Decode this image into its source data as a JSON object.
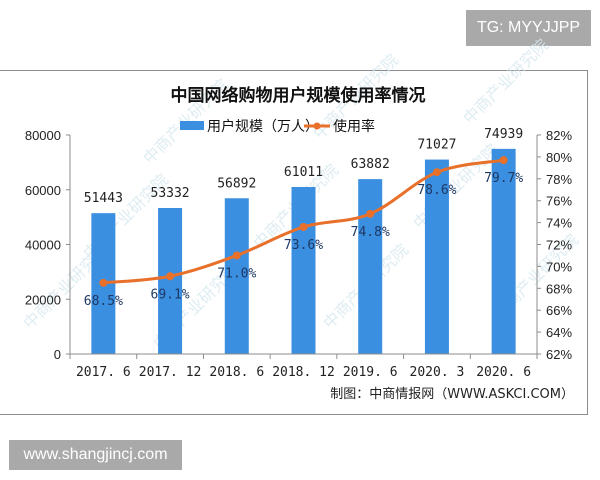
{
  "badges": {
    "top_right": "TG: MYYJJPP",
    "bottom_left": "www.shangjincj.com"
  },
  "colors": {
    "bar": "#3b8fe0",
    "line": "#e8702a",
    "axis": "#8c8c8c",
    "badge_bg": "#a9a9a9"
  },
  "chart_data": {
    "type": "bar+line",
    "title": "中国网络购物用户规模使用率情况",
    "categories": [
      "2017.6",
      "2017.12",
      "2018.6",
      "2018.12",
      "2019.6",
      "2020.3",
      "2020.6"
    ],
    "series": [
      {
        "name": "用户规模（万人）",
        "type": "bar",
        "axis": "left",
        "values": [
          51443,
          53332,
          56892,
          61011,
          63882,
          71027,
          74939
        ]
      },
      {
        "name": "使用率",
        "type": "line",
        "axis": "right",
        "values": [
          68.5,
          69.1,
          71.0,
          73.6,
          74.8,
          78.6,
          79.7
        ],
        "labels": [
          "68.5%",
          "69.1%",
          "71.0%",
          "73.6%",
          "74.8%",
          "78.6%",
          "79.7%"
        ]
      }
    ],
    "left_axis": {
      "ylim": [
        0,
        80000
      ],
      "ticks": [
        "0",
        "20000",
        "40000",
        "60000",
        "80000"
      ]
    },
    "right_axis": {
      "ylim": [
        62,
        82
      ],
      "ticks": [
        "62%",
        "64%",
        "66%",
        "68%",
        "70%",
        "72%",
        "74%",
        "76%",
        "78%",
        "80%",
        "82%"
      ]
    },
    "legend": {
      "position": "top",
      "entries": [
        "用户规模（万人）",
        "使用率"
      ]
    },
    "grid": false,
    "source": "制图：中商情报网（WWW.ASKCI.COM）",
    "watermark": "中商产业研究院"
  }
}
